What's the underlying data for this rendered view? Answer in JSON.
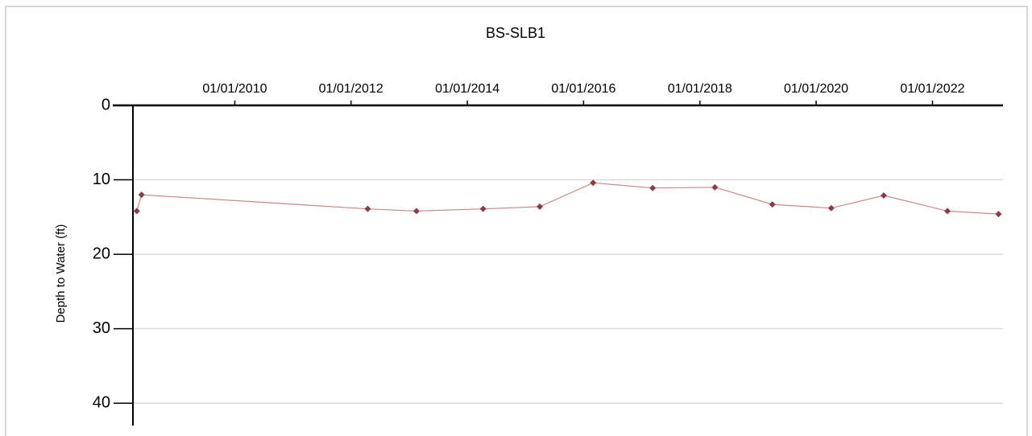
{
  "chart_data": {
    "type": "line",
    "title": "BS-SLB1",
    "y_label": "Depth to Water (ft)",
    "x": [
      "04/25/2008",
      "05/25/2008",
      "04/15/2012",
      "02/15/2013",
      "04/10/2014",
      "04/01/2015",
      "03/01/2016",
      "03/10/2017",
      "04/05/2018",
      "04/01/2019",
      "04/05/2020",
      "03/01/2021",
      "04/05/2022",
      "02/20/2023"
    ],
    "values": [
      14.2,
      12.0,
      13.9,
      14.2,
      13.9,
      13.6,
      10.4,
      11.1,
      11.0,
      13.3,
      13.8,
      12.1,
      14.2,
      14.6
    ],
    "color": "#c98a8a",
    "marker_color": "#8b3a4a",
    "xlim": [
      "04/01/2008",
      "03/20/2023"
    ],
    "xticks": [
      "01/01/2010",
      "01/01/2012",
      "01/01/2014",
      "01/01/2016",
      "01/01/2018",
      "01/01/2020",
      "01/01/2022"
    ],
    "ylim": [
      0,
      43
    ],
    "yticks": [
      0,
      10,
      20,
      30,
      40
    ],
    "y_inverted": true,
    "grid": true
  }
}
